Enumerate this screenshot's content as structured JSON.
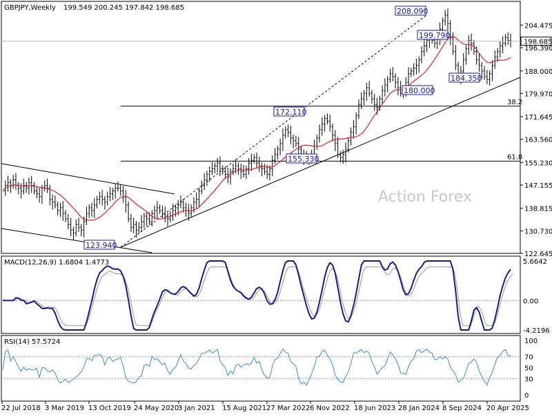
{
  "chart_data": [
    {
      "type": "candlestick",
      "symbol_header": "GBPJPY,Weekly",
      "ohlc_header": "199.549 200.245 197.842 198.685",
      "last_price": "198.685",
      "y_ticks": [
        "204.475",
        "196.390",
        "188.000",
        "179.970",
        "171.645",
        "163.560",
        "155.230",
        "147.155",
        "138.815",
        "130.730",
        "122.645"
      ],
      "ylim": [
        122.645,
        208.5
      ],
      "x_ticks": [
        "22 Jul 2018",
        "3 Mar 2019",
        "13 Oct 2019",
        "24 May 2020",
        "3 Jan 2021",
        "15 Aug 2021",
        "27 Mar 2022",
        "6 Nov 2022",
        "18 Jun 2023",
        "28 Jan 2024",
        "8 Sep 2024",
        "20 Apr 2025"
      ],
      "annotations": [
        {
          "label": "208.090",
          "value": 208.09
        },
        {
          "label": "199.790",
          "value": 199.79
        },
        {
          "label": "172.110",
          "value": 172.11
        },
        {
          "label": "180.000",
          "value": 180.0
        },
        {
          "label": "184.350",
          "value": 184.35
        },
        {
          "label": "155.330",
          "value": 155.33
        },
        {
          "label": "123.940",
          "value": 123.94
        }
      ],
      "fib_levels": [
        {
          "label": "38.2",
          "value": 175.4
        },
        {
          "label": "61.8",
          "value": 155.7
        }
      ],
      "watermark": "Action Forex",
      "colors": {
        "candles": "#000000",
        "sma": "#e0202a",
        "labels": "#1a1aa8"
      },
      "price_path": [
        145,
        147,
        148,
        147,
        149,
        147,
        146,
        145,
        147,
        146,
        148,
        147,
        145,
        144,
        143,
        146,
        147,
        146,
        142,
        141,
        140,
        138,
        139,
        137,
        135,
        133,
        131,
        130,
        133,
        132,
        131,
        134,
        137,
        139,
        138,
        140,
        142,
        143,
        142,
        141,
        143,
        144,
        145,
        146,
        146,
        145,
        143,
        140,
        135,
        132,
        133,
        131,
        132,
        134,
        136,
        135,
        134,
        137,
        138,
        139,
        138,
        137,
        136,
        135,
        136,
        138,
        139,
        140,
        141,
        139,
        138,
        137,
        139,
        141,
        142,
        145,
        147,
        149,
        151,
        152,
        153,
        154,
        155,
        153,
        152,
        151,
        150,
        152,
        153,
        154,
        153,
        152,
        151,
        153,
        155,
        156,
        157,
        155,
        154,
        153,
        152,
        151,
        153,
        156,
        158,
        160,
        162,
        165,
        167,
        166,
        164,
        163,
        162,
        160,
        158,
        157,
        156,
        157,
        158,
        161,
        164,
        167,
        169,
        171,
        170,
        168,
        165,
        162,
        158,
        157,
        158,
        160,
        163,
        166,
        168,
        172,
        176,
        178,
        180,
        182,
        180,
        178,
        176,
        175,
        178,
        181,
        183,
        185,
        187,
        186,
        184,
        182,
        180,
        181,
        184,
        187,
        188,
        189,
        190,
        192,
        195,
        197,
        199,
        200,
        199,
        198,
        200,
        203,
        206,
        208,
        205,
        200,
        195,
        190,
        186,
        188,
        192,
        196,
        199,
        198,
        195,
        192,
        190,
        188,
        186,
        185,
        187,
        190,
        193,
        195,
        197,
        198,
        200,
        199,
        198.7
      ]
    },
    {
      "type": "line",
      "title": "MACD(12,26,9) 1.6804 1.4773",
      "y_ticks": [
        "5.6642",
        "0.00",
        "-4.2196"
      ],
      "ylim": [
        -4.2196,
        5.6642
      ]
    },
    {
      "type": "line",
      "title": "RSI(14) 57.5724",
      "y_ticks": [
        "100",
        "70",
        "50",
        "30",
        "0"
      ],
      "ylim": [
        0,
        100
      ]
    }
  ]
}
